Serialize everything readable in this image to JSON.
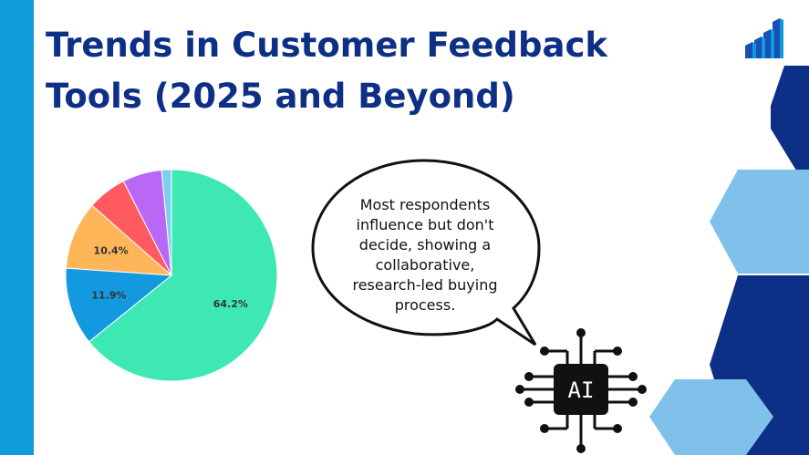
{
  "slide": {
    "title": "Trends in Customer Feedback Tools (2025 and Beyond)",
    "colors": {
      "title": "#0d2f86",
      "left_bar": "#0d9bdc",
      "hex_dark": "#0d2f86",
      "hex_light": "#7fc1ea"
    }
  },
  "logo": {
    "icon": "bar-chart-stairs-icon"
  },
  "chart_data": {
    "type": "pie",
    "slices": [
      {
        "value": 64.2,
        "label": "64.2%",
        "color": "#3de8b3"
      },
      {
        "value": 11.9,
        "label": "11.9%",
        "color": "#1399e0"
      },
      {
        "value": 10.4,
        "label": "10.4%",
        "color": "#ffb659"
      },
      {
        "value": 6.0,
        "label": "",
        "color": "#ff5a5f"
      },
      {
        "value": 6.0,
        "label": "",
        "color": "#b968f5"
      },
      {
        "value": 1.5,
        "label": "",
        "color": "#7ecfee"
      }
    ]
  },
  "callout": {
    "text": "Most respondents\ninfluence but don't\ndecide, showing a\ncollaborative,\nresearch-led buying\nprocess."
  },
  "ai_chip": {
    "label": "AI",
    "icon": "ai-chip-icon"
  }
}
